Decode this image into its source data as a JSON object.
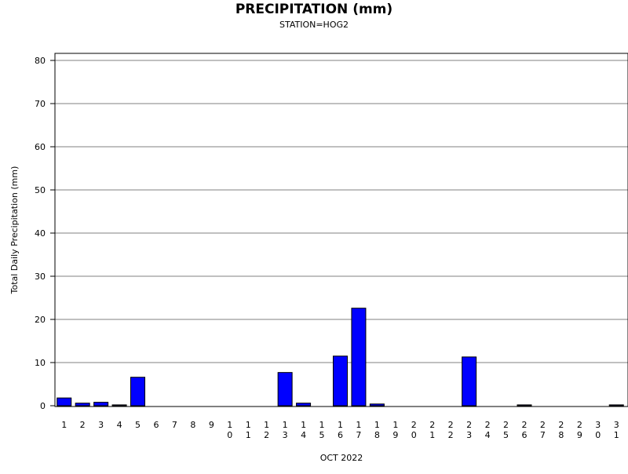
{
  "chart_data": {
    "type": "bar",
    "title": "PRECIPITATION (mm)",
    "subtitle": "STATION=HOG2",
    "xlabel": "OCT 2022",
    "ylabel": "Total Daily Precipitation (mm)",
    "ylim": [
      0,
      80
    ],
    "yticks": [
      0,
      10,
      20,
      30,
      40,
      50,
      60,
      70,
      80
    ],
    "grid": true,
    "categories": [
      "1",
      "2",
      "3",
      "4",
      "5",
      "6",
      "7",
      "8",
      "9",
      "10",
      "11",
      "12",
      "13",
      "14",
      "15",
      "16",
      "17",
      "18",
      "19",
      "20",
      "21",
      "22",
      "23",
      "24",
      "25",
      "26",
      "27",
      "28",
      "29",
      "30",
      "31"
    ],
    "values": [
      1.8,
      0.6,
      0.8,
      0.2,
      6.6,
      0,
      0,
      0,
      0,
      0,
      0,
      0,
      7.7,
      0.6,
      0,
      11.5,
      22.6,
      0.4,
      0,
      0,
      0,
      0,
      11.3,
      0,
      0,
      0.2,
      0,
      0,
      0,
      0,
      0.2
    ],
    "bar_color": "#0000ff",
    "grid_color": "#808080"
  }
}
